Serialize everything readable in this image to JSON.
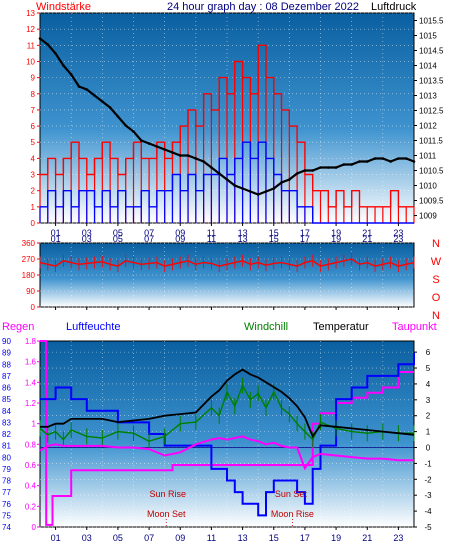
{
  "header": {
    "left_label": "Windstärke",
    "title": "24 hour graph day : 08 Dezember 2022",
    "right_label": "Luftdruck"
  },
  "colors": {
    "wind": "#ff0000",
    "gust": "#0000ff",
    "pressure": "#000000",
    "direction": "#ff0000",
    "rain": "#ff00ff",
    "humidity": "#0000ff",
    "windchill": "#008000",
    "temperature": "#000000",
    "dewpoint": "#ff00ff",
    "sky_top": "#0a5fa0",
    "sky_bottom": "#ffffff"
  },
  "x_ticks": [
    "01",
    "03",
    "05",
    "07",
    "09",
    "11",
    "13",
    "15",
    "17",
    "19",
    "21",
    "23"
  ],
  "x_ticks_bottom": [
    "01",
    "03",
    "05",
    "07",
    "09",
    "11",
    "13",
    "15",
    "17",
    "19",
    "21",
    "23"
  ],
  "chart_data": [
    {
      "type": "line",
      "title": "24 hour graph day : 08 Dezember 2022",
      "xlabel": "",
      "y_left_label": "Windstärke",
      "y_right_label": "Luftdruck",
      "x_range": [
        0,
        24
      ],
      "y_left_ticks": [
        0,
        1,
        2,
        3,
        4,
        5,
        6,
        7,
        8,
        9,
        10,
        11,
        12,
        13
      ],
      "y_left_ylim": [
        0,
        13
      ],
      "y_right_ticks": [
        1009,
        1009.5,
        1010,
        1010.5,
        1011,
        1011.5,
        1012,
        1012.5,
        1013,
        1013.5,
        1014,
        1014.5,
        1015,
        1015.5
      ],
      "y_right_ylim": [
        1008.75,
        1015.75
      ],
      "series": [
        {
          "name": "Luftdruck",
          "axis": "right",
          "x": [
            0,
            0.5,
            1,
            1.5,
            2,
            2.5,
            3,
            3.5,
            4,
            4.5,
            5,
            5.5,
            6,
            6.5,
            7,
            7.5,
            8,
            8.5,
            9,
            9.5,
            10,
            10.5,
            11,
            11.5,
            12,
            12.5,
            13,
            13.5,
            14,
            14.5,
            15,
            15.5,
            16,
            16.5,
            17,
            17.5,
            18,
            18.5,
            19,
            19.5,
            20,
            20.5,
            21,
            21.5,
            22,
            22.5,
            23,
            23.5,
            24
          ],
          "y": [
            1014.9,
            1014.7,
            1014.4,
            1014.0,
            1013.7,
            1013.3,
            1013.2,
            1013.0,
            1012.8,
            1012.6,
            1012.3,
            1012.0,
            1011.8,
            1011.5,
            1011.4,
            1011.3,
            1011.2,
            1011.1,
            1011.0,
            1011.0,
            1010.9,
            1010.8,
            1010.6,
            1010.4,
            1010.2,
            1010.0,
            1009.9,
            1009.8,
            1009.7,
            1009.8,
            1009.9,
            1010.1,
            1010.2,
            1010.4,
            1010.5,
            1010.5,
            1010.6,
            1010.6,
            1010.6,
            1010.7,
            1010.7,
            1010.8,
            1010.8,
            1010.9,
            1010.9,
            1010.8,
            1010.9,
            1010.9,
            1010.8
          ]
        },
        {
          "name": "Windstärke",
          "axis": "left",
          "x": [
            0,
            0.5,
            1,
            1.5,
            2,
            2.5,
            3,
            3.5,
            4,
            4.5,
            5,
            5.5,
            6,
            6.5,
            7,
            7.5,
            8,
            8.5,
            9,
            9.5,
            10,
            10.5,
            11,
            11.5,
            12,
            12.5,
            13,
            13.5,
            14,
            14.5,
            15,
            15.5,
            16,
            16.5,
            17,
            17.5,
            18,
            18.5,
            19,
            19.5,
            20,
            20.5,
            21,
            21.5,
            22,
            22.5,
            23,
            23.5,
            24
          ],
          "y": [
            3,
            4,
            3,
            4,
            5,
            4,
            3,
            4,
            5,
            4,
            3,
            4,
            5,
            4,
            4,
            5,
            4,
            5,
            6,
            7,
            6,
            8,
            7,
            9,
            8,
            10,
            9,
            8,
            11,
            9,
            8,
            7,
            6,
            5,
            3,
            2,
            2,
            1,
            2,
            1,
            2,
            1,
            1,
            1,
            1,
            2,
            1,
            1,
            1
          ]
        },
        {
          "name": "Böen",
          "axis": "left",
          "x": [
            0,
            0.5,
            1,
            1.5,
            2,
            2.5,
            3,
            3.5,
            4,
            4.5,
            5,
            5.5,
            6,
            6.5,
            7,
            7.5,
            8,
            8.5,
            9,
            9.5,
            10,
            10.5,
            11,
            11.5,
            12,
            12.5,
            13,
            13.5,
            14,
            14.5,
            15,
            15.5,
            16,
            16.5,
            17,
            17.5,
            18,
            18.5,
            19,
            19.5,
            20,
            20.5,
            21,
            21.5,
            22,
            22.5,
            23,
            23.5,
            24
          ],
          "y": [
            1,
            2,
            1,
            2,
            1,
            2,
            2,
            1,
            2,
            1,
            2,
            1,
            1,
            2,
            1,
            2,
            2,
            3,
            2,
            3,
            2,
            3,
            3,
            4,
            3,
            4,
            5,
            4,
            5,
            4,
            3,
            2,
            2,
            1,
            1,
            0,
            0,
            0,
            0,
            0,
            0,
            0,
            0,
            0,
            0,
            0,
            0,
            0,
            0
          ]
        }
      ]
    },
    {
      "type": "line",
      "xlabel": "",
      "y_left_ticks": [
        0,
        90,
        180,
        270,
        360
      ],
      "y_left_ylim": [
        0,
        360
      ],
      "y_right_labels": [
        "N",
        "W",
        "S",
        "O",
        "N"
      ],
      "x_range": [
        0,
        24
      ],
      "series": [
        {
          "name": "Windrichtung",
          "x": [
            0,
            0.5,
            1,
            1.5,
            2,
            2.5,
            3,
            3.5,
            4,
            4.5,
            5,
            5.5,
            6,
            6.5,
            7,
            7.5,
            8,
            8.5,
            9,
            9.5,
            10,
            10.5,
            11,
            11.5,
            12,
            12.5,
            13,
            13.5,
            14,
            14.5,
            15,
            15.5,
            16,
            16.5,
            17,
            17.5,
            18,
            18.5,
            19,
            19.5,
            20,
            20.5,
            21,
            21.5,
            22,
            22.5,
            23,
            23.5,
            24
          ],
          "y": [
            250,
            240,
            230,
            260,
            250,
            240,
            245,
            250,
            255,
            240,
            230,
            260,
            250,
            240,
            245,
            250,
            230,
            240,
            250,
            260,
            240,
            250,
            245,
            230,
            240,
            250,
            260,
            240,
            250,
            235,
            245,
            250,
            240,
            230,
            250,
            260,
            230,
            240,
            250,
            260,
            270,
            240,
            250,
            230,
            240,
            250,
            230,
            240,
            250
          ]
        }
      ]
    },
    {
      "type": "line",
      "header_labels": [
        "Regen",
        "Luftfeuchte",
        "Windchill",
        "Temperatur",
        "Taupunkt"
      ],
      "xlabel": "",
      "x_range": [
        0,
        24
      ],
      "y_rain_ticks": [
        0,
        0.2,
        0.4,
        0.6,
        0.8,
        1,
        1.2,
        1.4,
        1.6,
        1.8
      ],
      "y_rain_ylim": [
        0,
        1.8
      ],
      "y_hum_ticks": [
        74,
        75,
        76,
        77,
        78,
        79,
        80,
        81,
        82,
        83,
        84,
        85,
        86,
        87,
        88,
        89,
        90
      ],
      "y_hum_ylim": [
        74,
        90
      ],
      "y_temp_ticks": [
        -5,
        -4,
        -3,
        -2,
        -1,
        0,
        1,
        2,
        3,
        4,
        5,
        6
      ],
      "y_temp_ylim": [
        -5,
        6.7
      ],
      "annotations": [
        {
          "label": "Sun Rise",
          "hour": 8.2
        },
        {
          "label": "Moon Set",
          "hour": 8.1
        },
        {
          "label": "Sun Set",
          "hour": 16.1
        },
        {
          "label": "Moon Rise",
          "hour": 16.2
        }
      ],
      "series": [
        {
          "name": "Regen",
          "x": [
            0,
            0.4,
            0.4,
            0.8,
            0.8,
            1.8,
            2,
            8,
            8.5,
            10,
            17,
            17.5,
            18,
            19,
            20,
            21,
            22,
            23,
            24
          ],
          "y": [
            1.8,
            1.8,
            0.02,
            0.02,
            0.3,
            0.3,
            0.55,
            0.55,
            0.6,
            0.6,
            0.6,
            1.0,
            1.1,
            1.2,
            1.25,
            1.3,
            1.35,
            1.5,
            1.5
          ]
        },
        {
          "name": "Luftfeuchte",
          "x": [
            0,
            0.5,
            1,
            1.5,
            2,
            3,
            4,
            5,
            6,
            7,
            8,
            9,
            10,
            11,
            11.5,
            12,
            12.5,
            13,
            13.5,
            14,
            14.5,
            15,
            15.5,
            16,
            16.5,
            17,
            17.5,
            18,
            19,
            20,
            21,
            22,
            23,
            23.5,
            24
          ],
          "y": [
            85,
            85,
            86,
            86,
            85,
            84,
            84,
            83,
            83,
            82,
            81,
            81,
            81,
            79,
            79,
            78,
            77,
            76,
            76,
            75,
            77,
            78,
            78,
            78,
            77,
            76,
            79,
            81,
            85,
            86,
            87,
            87,
            88,
            88,
            89
          ]
        },
        {
          "name": "Windchill",
          "x": [
            0,
            0.5,
            1,
            1.5,
            2,
            3,
            4,
            5,
            6,
            7,
            8,
            9,
            10,
            11,
            11.5,
            12,
            12.5,
            13,
            13.5,
            14,
            14.5,
            15,
            15.5,
            16,
            16.5,
            17,
            17.5,
            18,
            19,
            20,
            21,
            22,
            23,
            24
          ],
          "y": [
            1.2,
            0.8,
            1.0,
            0.5,
            1.1,
            0.7,
            0.6,
            1.0,
            0.9,
            0.4,
            0.7,
            1.5,
            1.6,
            2.5,
            2.0,
            3.5,
            2.6,
            3.9,
            3.0,
            3.4,
            2.5,
            3.5,
            2.5,
            2.1,
            1.5,
            1.0,
            0.5,
            1.6,
            1.2,
            1.0,
            0.9,
            1.0,
            0.9,
            0.9
          ]
        },
        {
          "name": "Temperatur",
          "x": [
            0,
            0.5,
            1,
            1.5,
            2,
            3,
            4,
            5,
            6,
            7,
            8,
            9,
            10,
            11,
            11.5,
            12,
            12.5,
            13,
            13.5,
            14,
            14.5,
            15,
            15.5,
            16,
            16.5,
            17,
            17.5,
            18,
            19,
            20,
            21,
            22,
            23,
            24
          ],
          "y": [
            1.3,
            1.3,
            1.5,
            1.5,
            1.8,
            1.8,
            1.8,
            1.6,
            1.7,
            1.8,
            2.0,
            2.1,
            2.2,
            3.2,
            3.6,
            4.2,
            4.6,
            4.9,
            4.6,
            4.4,
            4.1,
            3.8,
            3.5,
            3.1,
            2.6,
            1.9,
            0.7,
            1.4,
            1.3,
            1.2,
            1.1,
            1.0,
            0.9,
            0.8
          ]
        },
        {
          "name": "Taupunkt",
          "x": [
            0,
            0.5,
            1,
            1.5,
            2,
            3,
            4,
            5,
            6,
            7,
            8,
            9,
            10,
            11,
            11.5,
            12,
            12.5,
            13,
            13.5,
            14,
            14.5,
            15,
            15.5,
            16,
            16.5,
            17,
            17.5,
            18,
            19,
            20,
            21,
            22,
            23,
            24
          ],
          "y": [
            -0.2,
            0.1,
            0.2,
            0.1,
            0.1,
            0.1,
            0.1,
            0.0,
            0.0,
            -0.1,
            -0.5,
            -0.3,
            0.2,
            0.5,
            0.6,
            0.5,
            0.6,
            0.7,
            0.5,
            0.4,
            0.2,
            0.3,
            0.1,
            0.0,
            0.0,
            -1.3,
            -0.6,
            -0.4,
            -0.5,
            -0.6,
            -0.7,
            -0.7,
            -0.8,
            -0.8
          ]
        }
      ]
    }
  ]
}
